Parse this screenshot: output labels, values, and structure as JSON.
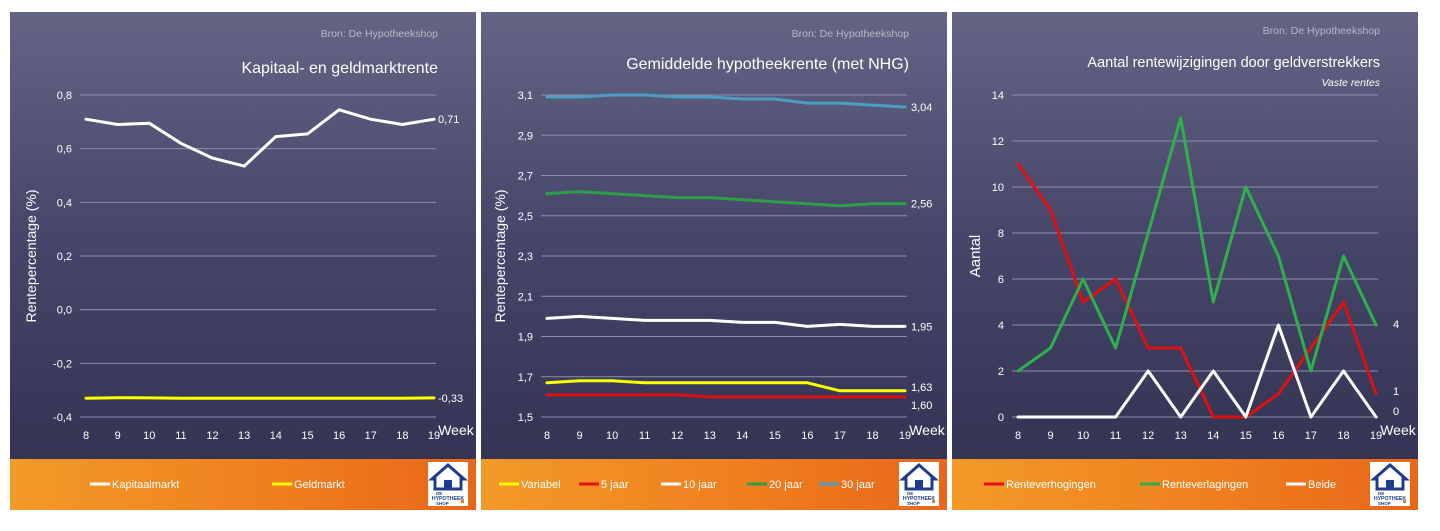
{
  "brand": {
    "logo_text": [
      "DE",
      "HYPOTHEEK",
      "SHOP"
    ],
    "colors": {
      "legend_bar": "#ef7d1e",
      "panel": "#4a4a6e",
      "logo_blue": "#1f3c8c"
    }
  },
  "chart_data": [
    {
      "type": "line",
      "source": "Bron: De Hypotheekshop",
      "title": "Kapitaal- en geldmarktrente",
      "subtitle": "",
      "ylabel": "Rentepercentage (%)",
      "xlabel": "Week",
      "ylim": [
        -0.4,
        0.8
      ],
      "yticks": [
        "-0,4",
        "-0,2",
        "0,0",
        "0,2",
        "0,4",
        "0,6",
        "0,8"
      ],
      "x": [
        "8",
        "9",
        "10",
        "11",
        "12",
        "13",
        "14",
        "15",
        "16",
        "17",
        "18",
        "19"
      ],
      "series": [
        {
          "name": "Kapitaalmarkt",
          "color": "#ffffff",
          "values": [
            0.71,
            0.69,
            0.695,
            0.62,
            0.565,
            0.535,
            0.645,
            0.655,
            0.745,
            0.71,
            0.69,
            0.71
          ],
          "end_label": "0,71"
        },
        {
          "name": "Geldmarkt",
          "color": "#ffff00",
          "values": [
            -0.33,
            -0.328,
            -0.329,
            -0.33,
            -0.33,
            -0.33,
            -0.33,
            -0.33,
            -0.33,
            -0.33,
            -0.33,
            -0.329
          ],
          "end_label": "-0,33"
        }
      ]
    },
    {
      "type": "line",
      "source": "Bron: De Hypotheekshop",
      "title": "Gemiddelde hypotheekrente (met NHG)",
      "subtitle": "",
      "ylabel": "Rentepercentage (%)",
      "xlabel": "Week",
      "ylim": [
        1.5,
        3.1
      ],
      "yticks": [
        "1,5",
        "1,7",
        "1,9",
        "2,1",
        "2,3",
        "2,5",
        "2,7",
        "2,9",
        "3,1"
      ],
      "x": [
        "8",
        "9",
        "10",
        "11",
        "12",
        "13",
        "14",
        "15",
        "16",
        "17",
        "18",
        "19"
      ],
      "series": [
        {
          "name": "Variabel",
          "color": "#ffff00",
          "values": [
            1.67,
            1.68,
            1.68,
            1.67,
            1.67,
            1.67,
            1.67,
            1.67,
            1.67,
            1.63,
            1.63,
            1.63
          ],
          "end_label": "1,63"
        },
        {
          "name": "5 jaar",
          "color": "#e01010",
          "values": [
            1.61,
            1.61,
            1.61,
            1.61,
            1.61,
            1.6,
            1.6,
            1.6,
            1.6,
            1.6,
            1.6,
            1.6
          ],
          "end_label": "1,60"
        },
        {
          "name": "10 jaar",
          "color": "#ffffff",
          "values": [
            1.99,
            2.0,
            1.99,
            1.98,
            1.98,
            1.98,
            1.97,
            1.97,
            1.95,
            1.96,
            1.95,
            1.95
          ],
          "end_label": "1,95"
        },
        {
          "name": "20 jaar",
          "color": "#2e9e48",
          "values": [
            2.61,
            2.62,
            2.61,
            2.6,
            2.59,
            2.59,
            2.58,
            2.57,
            2.56,
            2.55,
            2.56,
            2.56
          ],
          "end_label": "2,56"
        },
        {
          "name": "30 jaar",
          "color": "#4b9ec0",
          "values": [
            3.09,
            3.09,
            3.1,
            3.1,
            3.09,
            3.09,
            3.08,
            3.08,
            3.06,
            3.06,
            3.05,
            3.04
          ],
          "end_label": "3,04"
        }
      ]
    },
    {
      "type": "line",
      "source": "Bron: De Hypotheekshop",
      "title": "Aantal rentewijzigingen door geldverstrekkers",
      "subtitle": "Vaste rentes",
      "ylabel": "Aantal",
      "xlabel": "Week",
      "ylim": [
        0,
        14
      ],
      "yticks": [
        "0",
        "2",
        "4",
        "6",
        "8",
        "10",
        "12",
        "14"
      ],
      "x": [
        "8",
        "9",
        "10",
        "11",
        "12",
        "13",
        "14",
        "15",
        "16",
        "17",
        "18",
        "19"
      ],
      "series": [
        {
          "name": "Renteverhogingen",
          "color": "#e01010",
          "values": [
            11,
            9,
            5,
            6,
            3,
            3,
            0,
            0,
            1,
            3,
            5,
            1
          ],
          "end_label": "1"
        },
        {
          "name": "Renteverlagingen",
          "color": "#2eb04a",
          "values": [
            2,
            3,
            6,
            3,
            8,
            13,
            5,
            10,
            7,
            2,
            7,
            4
          ],
          "end_label": "4"
        },
        {
          "name": "Beide",
          "color": "#ffffff",
          "values": [
            0,
            0,
            0,
            0,
            2,
            0,
            2,
            0,
            4,
            0,
            2,
            0
          ],
          "end_label": "0"
        }
      ]
    }
  ]
}
